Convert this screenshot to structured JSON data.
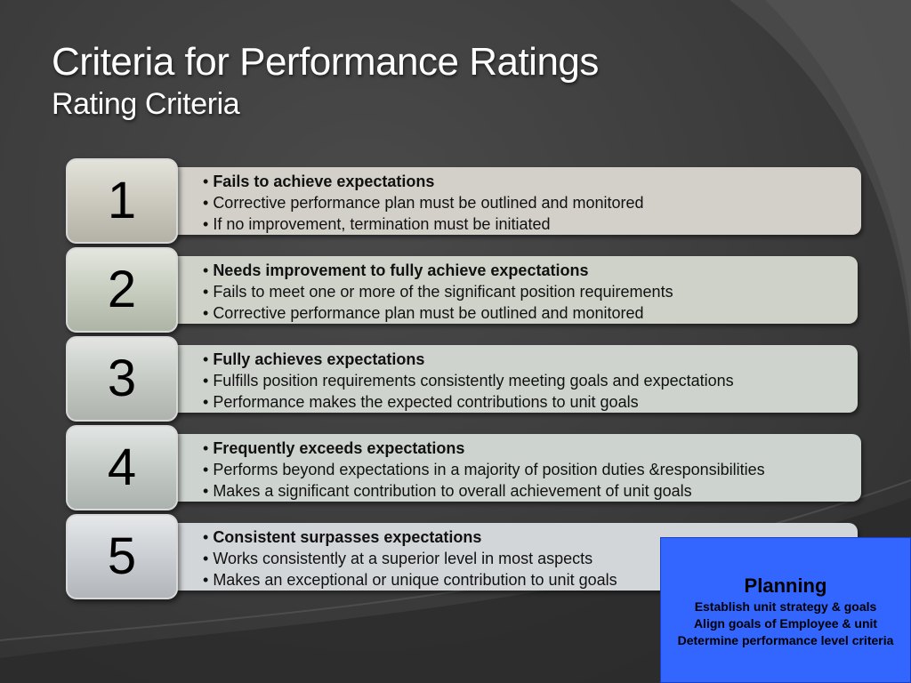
{
  "slide": {
    "title": "Criteria for Performance Ratings",
    "subtitle": "Rating Criteria"
  },
  "ratings": [
    {
      "number": "1",
      "bullets": [
        "Fails to achieve expectations",
        "Corrective performance plan must be outlined and monitored",
        "If no improvement, termination must be initiated"
      ]
    },
    {
      "number": "2",
      "bullets": [
        "Needs improvement to fully achieve expectations",
        "Fails to meet one or more of the significant position requirements",
        "Corrective performance plan must be outlined and monitored"
      ]
    },
    {
      "number": "3",
      "bullets": [
        "Fully achieves expectations",
        "Fulfills position requirements consistently meeting goals and expectations",
        "Performance makes the expected contributions to unit goals"
      ]
    },
    {
      "number": "4",
      "bullets": [
        "Frequently exceeds expectations",
        "Performs beyond expectations in a majority of position duties &responsibilities",
        "Makes a significant contribution to overall achievement of unit goals"
      ]
    },
    {
      "number": "5",
      "bullets": [
        "Consistent surpasses expectations",
        "Works consistently at a superior level in most aspects",
        "Makes an exceptional or unique contribution to unit goals"
      ]
    }
  ],
  "callout": {
    "title": "Planning",
    "lines": [
      "Establish unit strategy & goals",
      "Align goals of Employee & unit",
      "Determine performance level criteria"
    ]
  },
  "colors": {
    "background": "#3d3d3d",
    "callout": "#3366ff",
    "title_text": "#ffffff"
  }
}
